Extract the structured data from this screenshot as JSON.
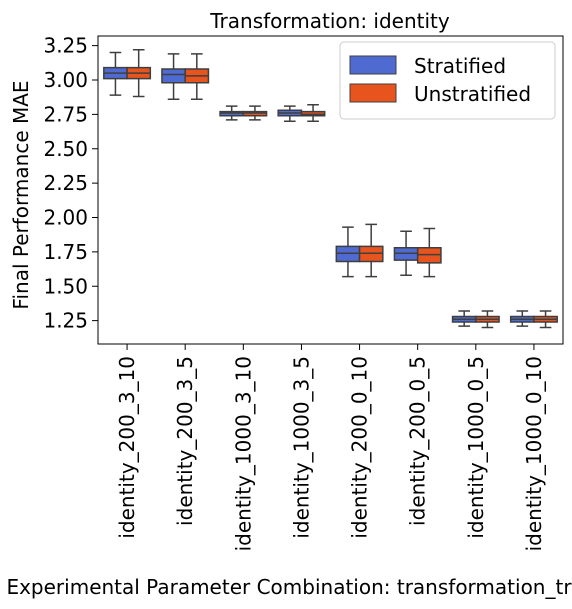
{
  "chart_data": {
    "type": "box",
    "title": "Transformation: identity",
    "xlabel": "Experimental Parameter Combination: transformation_transform",
    "ylabel": "Final Performance MAE",
    "ylim": [
      1.08,
      3.32
    ],
    "yticks": [
      1.25,
      1.5,
      1.75,
      2.0,
      2.25,
      2.5,
      2.75,
      3.0,
      3.25
    ],
    "ytick_labels": [
      "1.25",
      "1.50",
      "1.75",
      "2.00",
      "2.25",
      "2.50",
      "2.75",
      "3.00",
      "3.25"
    ],
    "categories": [
      "identity_200_3_10",
      "identity_200_3_5",
      "identity_1000_3_10",
      "identity_1000_3_5",
      "identity_200_0_10",
      "identity_200_0_5",
      "identity_1000_0_5",
      "identity_1000_0_10"
    ],
    "legend_position": "top-right",
    "grid": false,
    "series": [
      {
        "name": "Stratified",
        "color": "#4f6bd1",
        "boxes": [
          {
            "whislo": 2.89,
            "q1": 3.01,
            "med": 3.05,
            "q3": 3.09,
            "whishi": 3.2
          },
          {
            "whislo": 2.86,
            "q1": 2.98,
            "med": 3.04,
            "q3": 3.08,
            "whishi": 3.19
          },
          {
            "whislo": 2.71,
            "q1": 2.74,
            "med": 2.76,
            "q3": 2.77,
            "whishi": 2.81
          },
          {
            "whislo": 2.7,
            "q1": 2.74,
            "med": 2.76,
            "q3": 2.78,
            "whishi": 2.81
          },
          {
            "whislo": 1.57,
            "q1": 1.68,
            "med": 1.74,
            "q3": 1.79,
            "whishi": 1.93
          },
          {
            "whislo": 1.58,
            "q1": 1.69,
            "med": 1.74,
            "q3": 1.78,
            "whishi": 1.9
          },
          {
            "whislo": 1.21,
            "q1": 1.24,
            "med": 1.26,
            "q3": 1.28,
            "whishi": 1.32
          },
          {
            "whislo": 1.21,
            "q1": 1.24,
            "med": 1.26,
            "q3": 1.28,
            "whishi": 1.32
          }
        ]
      },
      {
        "name": "Unstratified",
        "color": "#e8541e",
        "boxes": [
          {
            "whislo": 2.88,
            "q1": 3.01,
            "med": 3.05,
            "q3": 3.09,
            "whishi": 3.22
          },
          {
            "whislo": 2.86,
            "q1": 2.98,
            "med": 3.03,
            "q3": 3.08,
            "whishi": 3.19
          },
          {
            "whislo": 2.71,
            "q1": 2.74,
            "med": 2.76,
            "q3": 2.77,
            "whishi": 2.81
          },
          {
            "whislo": 2.7,
            "q1": 2.74,
            "med": 2.75,
            "q3": 2.77,
            "whishi": 2.82
          },
          {
            "whislo": 1.57,
            "q1": 1.68,
            "med": 1.74,
            "q3": 1.79,
            "whishi": 1.95
          },
          {
            "whislo": 1.57,
            "q1": 1.67,
            "med": 1.73,
            "q3": 1.78,
            "whishi": 1.92
          },
          {
            "whislo": 1.2,
            "q1": 1.24,
            "med": 1.26,
            "q3": 1.28,
            "whishi": 1.32
          },
          {
            "whislo": 1.2,
            "q1": 1.24,
            "med": 1.26,
            "q3": 1.28,
            "whishi": 1.32
          }
        ]
      }
    ]
  }
}
